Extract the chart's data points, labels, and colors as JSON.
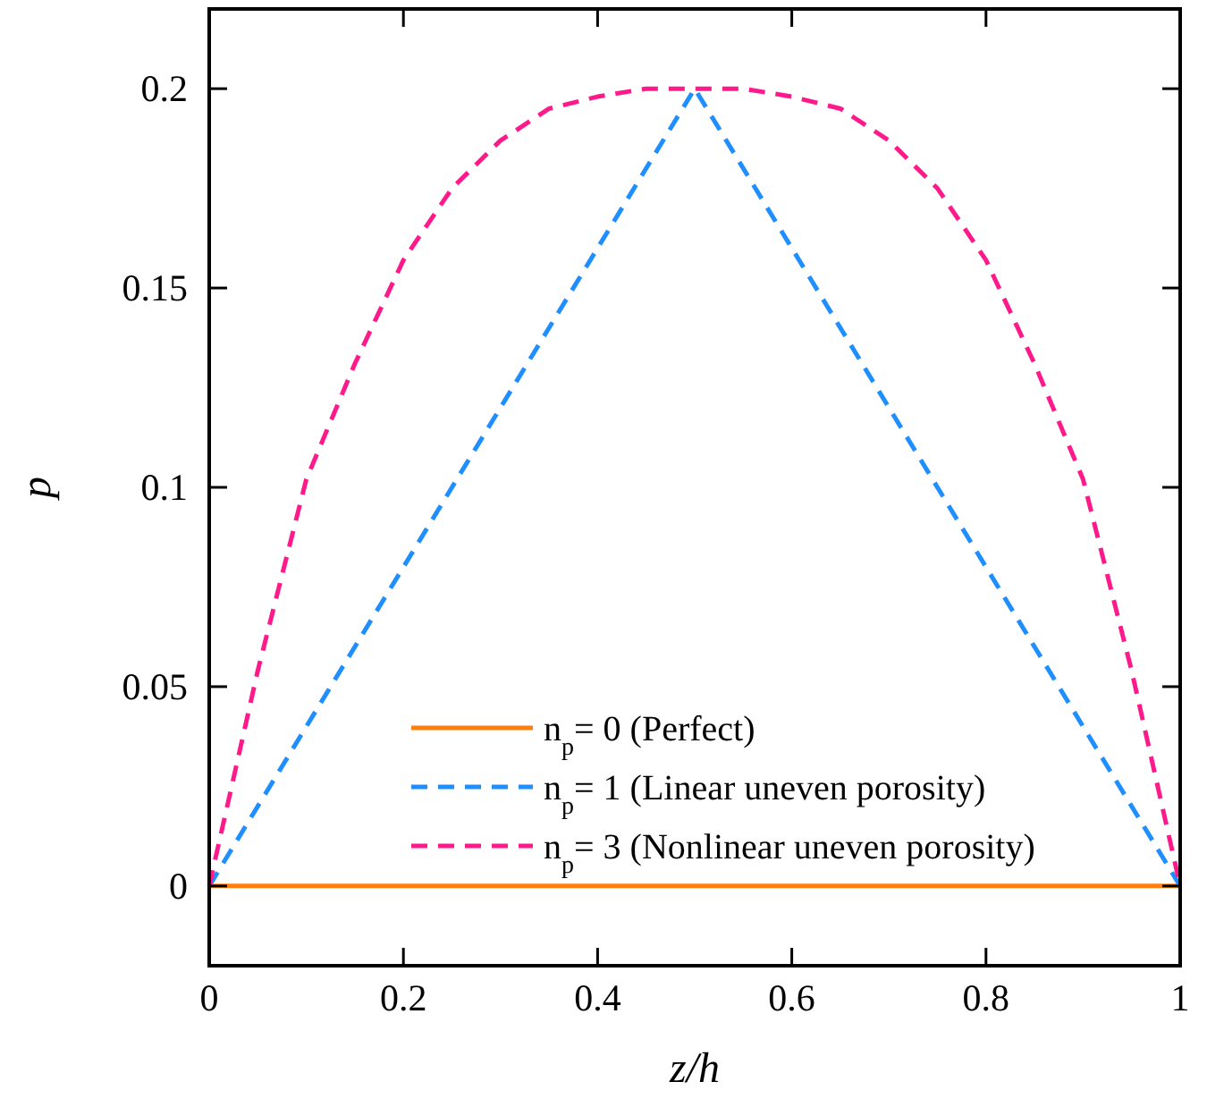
{
  "chart_data": {
    "type": "line",
    "xlabel": "z/h",
    "ylabel": "p",
    "xlim": [
      0,
      1
    ],
    "ylim": [
      -0.02,
      0.22
    ],
    "xticks": [
      0,
      0.2,
      0.4,
      0.6,
      0.8,
      1
    ],
    "yticks": [
      0,
      0.05,
      0.1,
      0.15,
      0.2
    ],
    "legend": "bottom",
    "grid": false,
    "series": [
      {
        "name": "n$_{p}$= 0 (Perfect)",
        "color": "#ff7f0e",
        "line_style": "solid",
        "x": [
          0,
          1
        ],
        "values": [
          0,
          0
        ]
      },
      {
        "name": "n$_{p}$= 1 (Linear uneven porosity)",
        "color": "#1f8fff",
        "line_style": "dashed",
        "x": [
          0,
          0.5,
          1
        ],
        "values": [
          0,
          0.2,
          0
        ]
      },
      {
        "name": "n$_{p}$= 3 (Nonlinear uneven porosity)",
        "color": "#ff1a8c",
        "line_style": "dashed",
        "x": [
          0,
          0.05,
          0.1,
          0.15,
          0.2,
          0.25,
          0.3,
          0.35,
          0.4,
          0.45,
          0.5,
          0.55,
          0.6,
          0.65,
          0.7,
          0.75,
          0.8,
          0.85,
          0.9,
          0.95,
          1
        ],
        "values": [
          0,
          0.054,
          0.102,
          0.131,
          0.157,
          0.175,
          0.187,
          0.195,
          0.198,
          0.2,
          0.2,
          0.2,
          0.198,
          0.195,
          0.187,
          0.175,
          0.157,
          0.131,
          0.102,
          0.054,
          0
        ]
      }
    ]
  }
}
